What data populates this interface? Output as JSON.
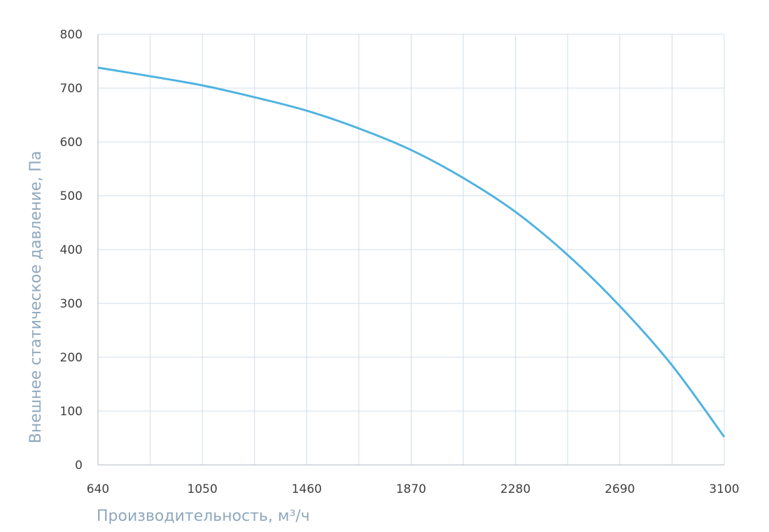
{
  "chart_data": {
    "type": "line",
    "title": "",
    "xlabel": "Производительность, м³/ч",
    "ylabel": "Внешнее  статическое  давление, Па",
    "xlim": [
      640,
      3100
    ],
    "ylim": [
      0,
      800
    ],
    "x_ticks": [
      640,
      1050,
      1460,
      1870,
      2280,
      2690,
      3100
    ],
    "y_ticks": [
      0,
      100,
      200,
      300,
      400,
      500,
      600,
      700,
      800
    ],
    "grid": true,
    "line_color": "#4fb3e0",
    "grid_color": "#d0dde8",
    "series": [
      {
        "x": [
          640,
          845,
          1050,
          1255,
          1460,
          1665,
          1870,
          2075,
          2280,
          2485,
          2690,
          2895,
          3100
        ],
        "y": [
          738,
          722,
          705,
          683,
          658,
          625,
          585,
          533,
          470,
          390,
          295,
          185,
          52
        ]
      }
    ]
  }
}
